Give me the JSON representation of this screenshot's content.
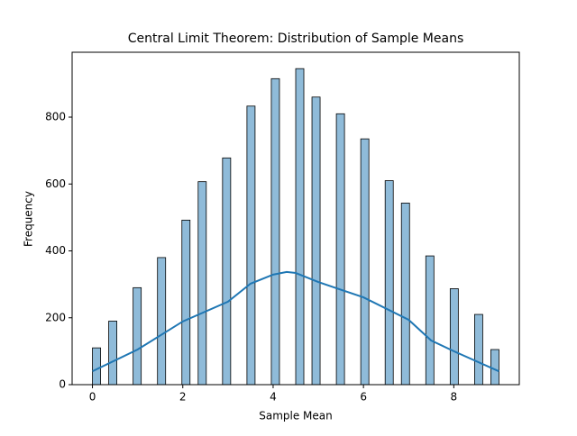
{
  "chart_data": {
    "type": "histogram",
    "title": "Central Limit Theorem: Distribution of Sample Means",
    "x_label": "Sample Mean",
    "y_label": "Frequency",
    "bins": [
      0,
      0.18,
      0.36,
      0.54,
      0.72,
      0.9,
      1.08,
      1.26,
      1.44,
      1.62,
      1.8,
      1.98,
      2.16,
      2.34,
      2.52,
      2.7,
      2.88,
      3.06,
      3.24,
      3.42,
      3.6,
      3.78,
      3.96,
      4.14,
      4.32,
      4.5,
      4.68,
      4.86,
      5.04,
      5.22,
      5.4,
      5.58,
      5.76,
      5.94,
      6.12,
      6.3,
      6.48,
      6.66,
      6.84,
      7.02,
      7.2,
      7.38,
      7.56,
      7.74,
      7.92,
      8.1,
      8.28,
      8.46,
      8.64,
      8.82,
      9
    ],
    "values": [
      110,
      0,
      190,
      0,
      0,
      290,
      0,
      0,
      380,
      0,
      0,
      492,
      0,
      607,
      0,
      0,
      678,
      0,
      0,
      833,
      0,
      0,
      915,
      0,
      0,
      945,
      0,
      860,
      0,
      0,
      810,
      0,
      0,
      735,
      0,
      0,
      610,
      0,
      543,
      0,
      0,
      385,
      0,
      0,
      287,
      0,
      0,
      210,
      0,
      105
    ],
    "color": "#8fbbd9",
    "edge_color": "#000000",
    "kde": {
      "color": "#1f77b4",
      "x": [
        0,
        1,
        2,
        3,
        3.5,
        4,
        4.3,
        4.5,
        5,
        6,
        7,
        7.5,
        8,
        9
      ],
      "values": [
        40,
        105,
        189,
        248,
        302,
        329,
        337,
        334,
        307,
        261,
        194,
        132,
        100,
        40
      ]
    },
    "xlim": [
      -0.45,
      9.45
    ],
    "ylim": [
      0,
      994
    ],
    "xticks": [
      0,
      2,
      4,
      6,
      8
    ],
    "yticks": [
      0,
      200,
      400,
      600,
      800
    ]
  }
}
